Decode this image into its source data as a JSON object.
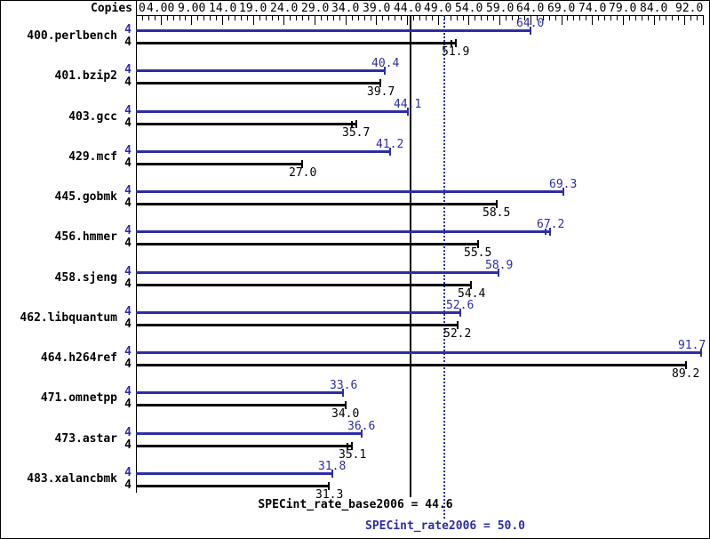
{
  "colors": {
    "peak": "#2d2da7",
    "base": "#000000",
    "background": "#ffffff"
  },
  "copies_column_header": "Copies",
  "footer": {
    "base_label": "SPECint_rate_base2006 = 44.6",
    "peak_label": "SPECint_rate2006 = 50.0"
  },
  "chart_data": {
    "type": "bar",
    "orientation": "horizontal",
    "title": "",
    "xlabel": "",
    "ylabel": "Copies",
    "grid": false,
    "x_axis": {
      "min": 0,
      "max": 92,
      "minor_tick_step": 1,
      "major_ticks": [
        4,
        9,
        14,
        19,
        24,
        29,
        34,
        39,
        44,
        49,
        54,
        59,
        64,
        69,
        74,
        79,
        84,
        89,
        92
      ],
      "tick_labels": [
        {
          "value": 0,
          "text": "0"
        },
        {
          "value": 4,
          "text": "4.00"
        },
        {
          "value": 9,
          "text": "9.00"
        },
        {
          "value": 14,
          "text": "14.0"
        },
        {
          "value": 19,
          "text": "19.0"
        },
        {
          "value": 24,
          "text": "24.0"
        },
        {
          "value": 29,
          "text": "29.0"
        },
        {
          "value": 34,
          "text": "34.0"
        },
        {
          "value": 39,
          "text": "39.0"
        },
        {
          "value": 44,
          "text": "44.0"
        },
        {
          "value": 49,
          "text": "49.0"
        },
        {
          "value": 54,
          "text": "54.0"
        },
        {
          "value": 59,
          "text": "59.0"
        },
        {
          "value": 64,
          "text": "64.0"
        },
        {
          "value": 69,
          "text": "69.0"
        },
        {
          "value": 74,
          "text": "74.0"
        },
        {
          "value": 79,
          "text": "79.0"
        },
        {
          "value": 84,
          "text": "84.0"
        },
        {
          "value": 92,
          "text": "92.0"
        }
      ]
    },
    "categories": [
      "400.perlbench",
      "401.bzip2",
      "403.gcc",
      "429.mcf",
      "445.gobmk",
      "456.hmmer",
      "458.sjeng",
      "462.libquantum",
      "464.h264ref",
      "471.omnetpp",
      "473.astar",
      "483.xalancbmk"
    ],
    "series": [
      {
        "name": "SPECint_rate2006 (peak)",
        "color_key": "peak",
        "copies": [
          4,
          4,
          4,
          4,
          4,
          4,
          4,
          4,
          4,
          4,
          4,
          4
        ],
        "values": [
          64.0,
          40.4,
          44.1,
          41.2,
          69.3,
          67.2,
          58.9,
          52.6,
          91.7,
          33.6,
          36.6,
          31.8
        ],
        "range_marker": [
          false,
          false,
          false,
          false,
          false,
          true,
          false,
          false,
          false,
          false,
          false,
          false
        ]
      },
      {
        "name": "SPECint_rate_base2006 (base)",
        "color_key": "base",
        "copies": [
          4,
          4,
          4,
          4,
          4,
          4,
          4,
          4,
          4,
          4,
          4,
          4
        ],
        "values": [
          51.9,
          39.7,
          35.7,
          27.0,
          58.5,
          55.5,
          54.4,
          52.2,
          89.2,
          34.0,
          35.1,
          31.3
        ],
        "range_marker": [
          true,
          false,
          true,
          false,
          false,
          false,
          false,
          false,
          false,
          false,
          true,
          false
        ]
      }
    ],
    "reference_lines": [
      {
        "label": "SPECint_rate_base2006 = 44.6",
        "value": 44.6,
        "style": "solid",
        "color_key": "base"
      },
      {
        "label": "SPECint_rate2006 = 50.0",
        "value": 50.0,
        "style": "dotted",
        "color_key": "peak"
      }
    ]
  }
}
